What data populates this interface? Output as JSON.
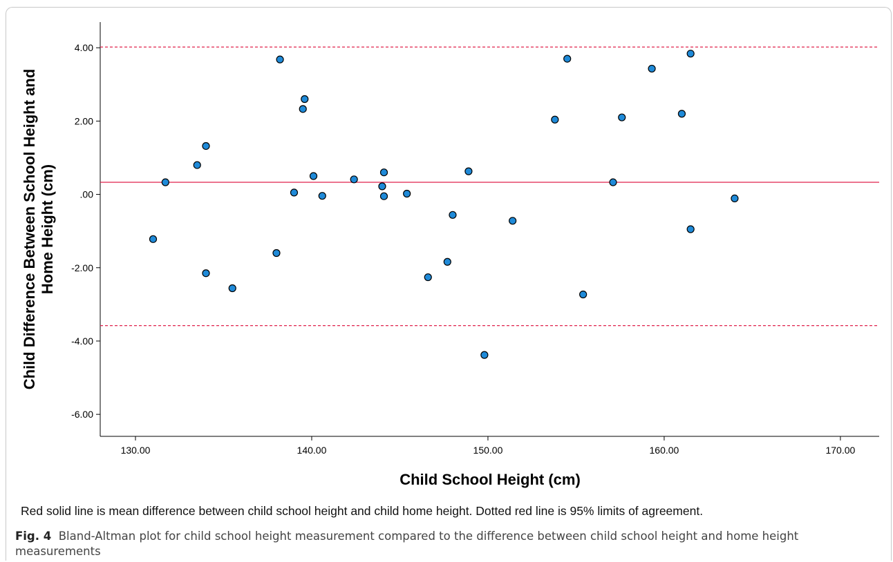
{
  "chart_data": {
    "type": "scatter",
    "xlabel": "Child School Height (cm)",
    "ylabel": "Child Difference Between School Height and Home Height (cm)",
    "ylabel_lines": [
      "Child Difference Between School Height and",
      "Home Height (cm)"
    ],
    "xlim": [
      128,
      172.2
    ],
    "ylim": [
      -6.6,
      4.7
    ],
    "x_ticks": [
      130,
      140,
      150,
      160,
      170
    ],
    "x_tick_labels": [
      "130.00",
      "140.00",
      "150.00",
      "160.00",
      "170.00"
    ],
    "y_ticks": [
      4,
      2,
      0,
      -2,
      -4,
      -6
    ],
    "y_tick_labels": [
      "4.00",
      "2.00",
      ".00",
      "-2.00",
      "-4.00",
      "-6.00"
    ],
    "mean_line": 0.33,
    "limits_of_agreement": [
      4.02,
      -3.58
    ],
    "colors": {
      "point_fill": "#1f8ad8",
      "point_edge": "#000000",
      "line": "#e0204a"
    },
    "grid": false,
    "points": [
      {
        "x": 131.0,
        "y": -1.22
      },
      {
        "x": 131.7,
        "y": 0.33
      },
      {
        "x": 133.5,
        "y": 0.8
      },
      {
        "x": 134.0,
        "y": 1.32
      },
      {
        "x": 134.0,
        "y": -2.15
      },
      {
        "x": 135.5,
        "y": -2.56
      },
      {
        "x": 138.0,
        "y": -1.6
      },
      {
        "x": 138.2,
        "y": 3.68
      },
      {
        "x": 139.0,
        "y": 0.05
      },
      {
        "x": 139.5,
        "y": 2.33
      },
      {
        "x": 139.6,
        "y": 2.6
      },
      {
        "x": 140.1,
        "y": 0.5
      },
      {
        "x": 140.6,
        "y": -0.04
      },
      {
        "x": 142.4,
        "y": 0.41
      },
      {
        "x": 144.0,
        "y": 0.22
      },
      {
        "x": 144.1,
        "y": 0.6
      },
      {
        "x": 144.1,
        "y": -0.05
      },
      {
        "x": 145.4,
        "y": 0.02
      },
      {
        "x": 146.6,
        "y": -2.26
      },
      {
        "x": 147.7,
        "y": -1.84
      },
      {
        "x": 148.0,
        "y": -0.56
      },
      {
        "x": 148.9,
        "y": 0.63
      },
      {
        "x": 149.8,
        "y": -4.38
      },
      {
        "x": 151.4,
        "y": -0.72
      },
      {
        "x": 153.8,
        "y": 2.04
      },
      {
        "x": 154.5,
        "y": 3.7
      },
      {
        "x": 155.4,
        "y": -2.73
      },
      {
        "x": 157.1,
        "y": 0.33
      },
      {
        "x": 157.6,
        "y": 2.1
      },
      {
        "x": 159.3,
        "y": 3.43
      },
      {
        "x": 161.0,
        "y": 2.2
      },
      {
        "x": 161.5,
        "y": 3.84
      },
      {
        "x": 161.5,
        "y": -0.95
      },
      {
        "x": 164.0,
        "y": -0.11
      }
    ]
  },
  "note": "Red solid line is mean difference between child school height and child home height.  Dotted red line is 95% limits of agreement.",
  "caption": {
    "label": "Fig. 4",
    "text": "Bland-Altman plot for child school height measurement compared to the difference between child school height and home height measurements"
  }
}
